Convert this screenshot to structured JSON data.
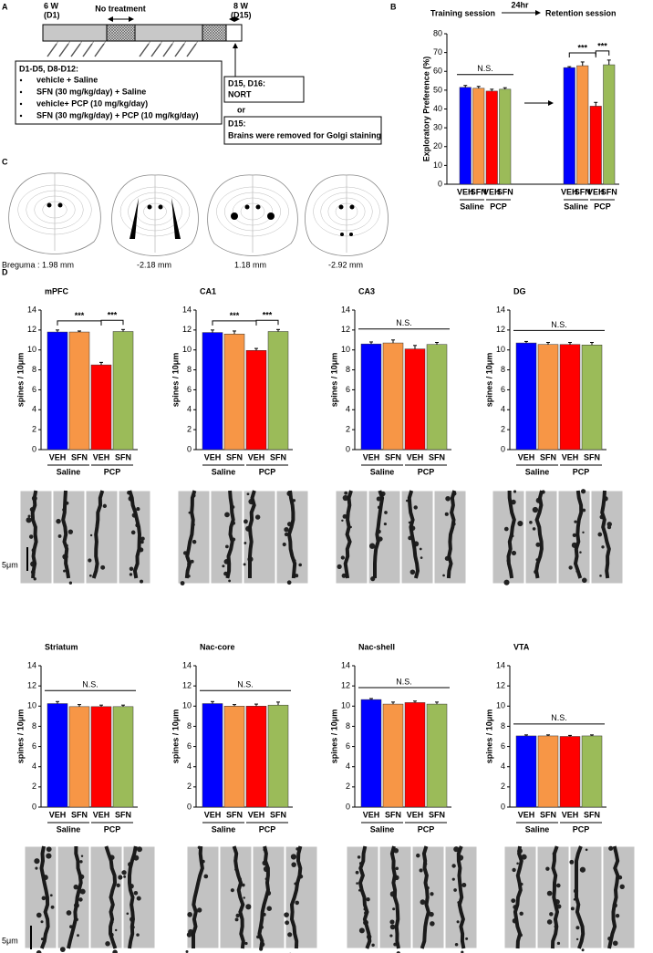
{
  "panel_labels": [
    "A",
    "B",
    "C",
    "D"
  ],
  "timeline": {
    "start": [
      "6 W",
      "(D1)"
    ],
    "no_treatment": "No treatment",
    "end": [
      "8 W",
      "(D15)"
    ],
    "schedule": {
      "title": "D1-D5, D8-D12:",
      "items": [
        "vehicle + Saline",
        "SFN (30 mg/kg/day) + Saline",
        "vehicle+ PCP (10 mg/kg/day)",
        "SFN (30 mg/kg/day) + PCP (10 mg/kg/day)"
      ]
    },
    "nort": [
      "D15, D16:",
      "NORT"
    ],
    "or": "or",
    "golgi": [
      "D15:",
      "Brains were removed for Golgi staining"
    ]
  },
  "sections": {
    "labels": [
      "Breguma : 1.98 mm",
      "-2.18 mm",
      "1.18 mm",
      "-2.92 mm"
    ]
  },
  "scale_bars": [
    "5μm",
    "5μm"
  ],
  "chart_data": [
    {
      "type": "bar",
      "header": [
        "Training session",
        "24hr",
        "Retention session"
      ],
      "ylabel": "Exploratory Preference (%)",
      "categories": [
        "VEH",
        "SFN",
        "VEH",
        "SFN",
        "VEH",
        "SFN",
        "VEH",
        "SFN"
      ],
      "groups": [
        "Saline",
        "PCP",
        "Saline",
        "PCP"
      ],
      "values": [
        51.5,
        51,
        49.5,
        50.5,
        62,
        63,
        41.5,
        63.5
      ],
      "errors": [
        1,
        1,
        1,
        0.8,
        0.5,
        2,
        2,
        2.5
      ],
      "colors": [
        "#0000ff",
        "#f79646",
        "#ff0000",
        "#9bbb59"
      ],
      "ylim": [
        0,
        80
      ],
      "yticks": [
        0,
        10,
        20,
        30,
        40,
        50,
        60,
        70,
        80
      ],
      "annotations": [
        {
          "text": "N.S.",
          "from": 0,
          "to": 3
        },
        {
          "text": "***",
          "from": 4,
          "to": 6
        },
        {
          "text": "***",
          "from": 6,
          "to": 7
        }
      ]
    },
    {
      "type": "bar",
      "title": "mPFC",
      "ylabel": "spines / 10μm",
      "categories": [
        "VEH",
        "SFN",
        "VEH",
        "SFN"
      ],
      "groups": [
        "Saline",
        "PCP"
      ],
      "values": [
        11.8,
        11.8,
        8.5,
        11.85
      ],
      "errors": [
        0.2,
        0.1,
        0.25,
        0.2
      ],
      "colors": [
        "#0000ff",
        "#f79646",
        "#ff0000",
        "#9bbb59"
      ],
      "ylim": [
        0,
        14
      ],
      "yticks": [
        0,
        2,
        4,
        6,
        8,
        10,
        12,
        14
      ],
      "annotations": [
        {
          "text": "***",
          "from": 0,
          "to": 2
        },
        {
          "text": "***",
          "from": 2,
          "to": 3
        }
      ]
    },
    {
      "type": "bar",
      "title": "CA1",
      "ylabel": "spines / 10μm",
      "categories": [
        "VEH",
        "SFN",
        "VEH",
        "SFN"
      ],
      "groups": [
        "Saline",
        "PCP"
      ],
      "values": [
        11.75,
        11.6,
        9.95,
        11.85
      ],
      "errors": [
        0.25,
        0.3,
        0.2,
        0.2
      ],
      "colors": [
        "#0000ff",
        "#f79646",
        "#ff0000",
        "#9bbb59"
      ],
      "ylim": [
        0,
        14
      ],
      "yticks": [
        0,
        2,
        4,
        6,
        8,
        10,
        12,
        14
      ],
      "annotations": [
        {
          "text": "***",
          "from": 0,
          "to": 2
        },
        {
          "text": "***",
          "from": 2,
          "to": 3
        }
      ]
    },
    {
      "type": "bar",
      "title": "CA3",
      "ylabel": "spines / 10μm",
      "categories": [
        "VEH",
        "SFN",
        "VEH",
        "SFN"
      ],
      "groups": [
        "Saline",
        "PCP"
      ],
      "values": [
        10.6,
        10.7,
        10.1,
        10.55
      ],
      "errors": [
        0.2,
        0.3,
        0.35,
        0.2
      ],
      "colors": [
        "#0000ff",
        "#f79646",
        "#ff0000",
        "#9bbb59"
      ],
      "ylim": [
        0,
        14
      ],
      "yticks": [
        0,
        2,
        4,
        6,
        8,
        10,
        12,
        14
      ],
      "annotations": [
        {
          "text": "N.S.",
          "from": 0,
          "to": 3
        }
      ]
    },
    {
      "type": "bar",
      "title": "DG",
      "ylabel": "spines / 10μm",
      "categories": [
        "VEH",
        "SFN",
        "VEH",
        "SFN"
      ],
      "groups": [
        "Saline",
        "PCP"
      ],
      "values": [
        10.7,
        10.55,
        10.55,
        10.5
      ],
      "errors": [
        0.15,
        0.2,
        0.2,
        0.25
      ],
      "colors": [
        "#0000ff",
        "#f79646",
        "#ff0000",
        "#9bbb59"
      ],
      "ylim": [
        0,
        14
      ],
      "yticks": [
        0,
        2,
        4,
        6,
        8,
        10,
        12,
        14
      ],
      "annotations": [
        {
          "text": "N.S.",
          "from": 0,
          "to": 3
        }
      ]
    },
    {
      "type": "bar",
      "title": "Striatum",
      "ylabel": "spines / 10μm",
      "categories": [
        "VEH",
        "SFN",
        "VEH",
        "SFN"
      ],
      "groups": [
        "Saline",
        "PCP"
      ],
      "values": [
        10.25,
        9.95,
        9.95,
        9.95
      ],
      "errors": [
        0.2,
        0.2,
        0.15,
        0.15
      ],
      "colors": [
        "#0000ff",
        "#f79646",
        "#ff0000",
        "#9bbb59"
      ],
      "ylim": [
        0,
        14
      ],
      "yticks": [
        0,
        2,
        4,
        6,
        8,
        10,
        12,
        14
      ],
      "annotations": [
        {
          "text": "N.S.",
          "from": 0,
          "to": 3
        }
      ]
    },
    {
      "type": "bar",
      "title": "Nac-core",
      "ylabel": "spines / 10μm",
      "categories": [
        "VEH",
        "SFN",
        "VEH",
        "SFN"
      ],
      "groups": [
        "Saline",
        "PCP"
      ],
      "values": [
        10.25,
        10.0,
        10.0,
        10.1
      ],
      "errors": [
        0.2,
        0.15,
        0.2,
        0.3
      ],
      "colors": [
        "#0000ff",
        "#f79646",
        "#ff0000",
        "#9bbb59"
      ],
      "ylim": [
        0,
        14
      ],
      "yticks": [
        0,
        2,
        4,
        6,
        8,
        10,
        12,
        14
      ],
      "annotations": [
        {
          "text": "N.S.",
          "from": 0,
          "to": 3
        }
      ]
    },
    {
      "type": "bar",
      "title": "Nac-shell",
      "ylabel": "spines / 10μm",
      "categories": [
        "VEH",
        "SFN",
        "VEH",
        "SFN"
      ],
      "groups": [
        "Saline",
        "PCP"
      ],
      "values": [
        10.65,
        10.2,
        10.35,
        10.2
      ],
      "errors": [
        0.1,
        0.2,
        0.15,
        0.2
      ],
      "colors": [
        "#0000ff",
        "#f79646",
        "#ff0000",
        "#9bbb59"
      ],
      "ylim": [
        0,
        14
      ],
      "yticks": [
        0,
        2,
        4,
        6,
        8,
        10,
        12,
        14
      ],
      "annotations": [
        {
          "text": "N.S.",
          "from": 0,
          "to": 3
        }
      ]
    },
    {
      "type": "bar",
      "title": "VTA",
      "ylabel": "spines / 10μm",
      "categories": [
        "VEH",
        "SFN",
        "VEH",
        "SFN"
      ],
      "groups": [
        "Saline",
        "PCP"
      ],
      "values": [
        7.05,
        7.05,
        7.0,
        7.05
      ],
      "errors": [
        0.1,
        0.1,
        0.1,
        0.1
      ],
      "colors": [
        "#0000ff",
        "#f79646",
        "#ff0000",
        "#9bbb59"
      ],
      "ylim": [
        0,
        14
      ],
      "yticks": [
        0,
        2,
        4,
        6,
        8,
        10,
        12,
        14
      ],
      "annotations": [
        {
          "text": "N.S.",
          "from": 0,
          "to": 3
        }
      ]
    }
  ]
}
